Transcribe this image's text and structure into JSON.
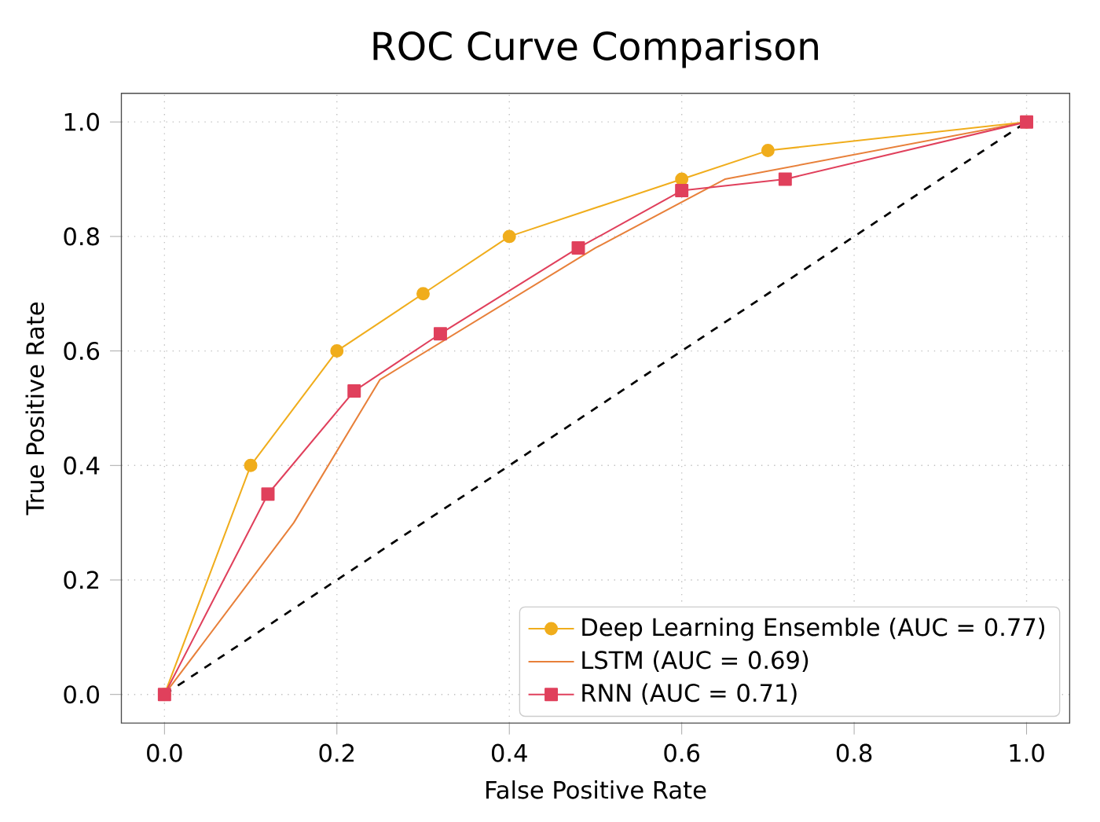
{
  "chart_data": {
    "type": "line",
    "title": "ROC Curve Comparison",
    "xlabel": "False Positive Rate",
    "ylabel": "True Positive Rate",
    "xlim": [
      -0.05,
      1.05
    ],
    "ylim": [
      -0.05,
      1.05
    ],
    "xticks": [
      {
        "value": 0,
        "label": "0.0"
      },
      {
        "value": 0.2,
        "label": "0.2"
      },
      {
        "value": 0.4,
        "label": "0.4"
      },
      {
        "value": 0.6,
        "label": "0.6"
      },
      {
        "value": 0.8,
        "label": "0.8"
      },
      {
        "value": 1,
        "label": "1.0"
      }
    ],
    "yticks": [
      {
        "value": 0,
        "label": "0.0"
      },
      {
        "value": 0.2,
        "label": "0.2"
      },
      {
        "value": 0.4,
        "label": "0.4"
      },
      {
        "value": 0.6,
        "label": "0.6"
      },
      {
        "value": 0.8,
        "label": "0.8"
      },
      {
        "value": 1,
        "label": "1.0"
      }
    ],
    "grid": true,
    "legend": "bottom right",
    "series": [
      {
        "name": "Deep Learning Ensemble (AUC = 0.77)",
        "color": "#f0ad1c",
        "marker": "circle",
        "x": [
          0,
          0.1,
          0.2,
          0.3,
          0.4,
          0.6,
          0.7,
          1
        ],
        "values": [
          0,
          0.4,
          0.6,
          0.7,
          0.8,
          0.9,
          0.95,
          1
        ]
      },
      {
        "name": "LSTM (AUC = 0.69)",
        "color": "#e8803a",
        "marker": "none",
        "x": [
          0,
          0.15,
          0.25,
          0.5,
          0.65,
          1
        ],
        "values": [
          0,
          0.3,
          0.55,
          0.78,
          0.9,
          1
        ]
      },
      {
        "name": "RNN (AUC = 0.71)",
        "color": "#e0405c",
        "marker": "square",
        "x": [
          0,
          0.12,
          0.22,
          0.32,
          0.48,
          0.6,
          0.72,
          1
        ],
        "values": [
          0,
          0.35,
          0.53,
          0.63,
          0.78,
          0.88,
          0.9,
          1
        ]
      },
      {
        "color": "#000000",
        "marker": "none",
        "line_style": "dashed",
        "x": [
          0,
          1
        ],
        "values": [
          0,
          1
        ]
      }
    ]
  }
}
